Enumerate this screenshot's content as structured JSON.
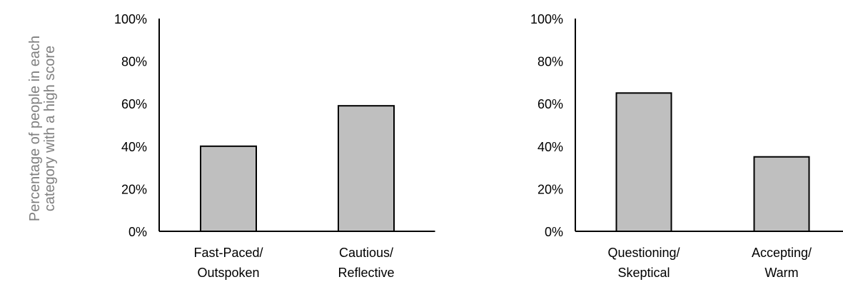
{
  "ylabel": [
    "Percentage of people in each",
    "category with a high score"
  ],
  "colors": {
    "bar_fill": "#bfbfbf",
    "bar_stroke": "#000000",
    "axis": "#000000",
    "ylabel": "#7f7f7f"
  },
  "chart_data": [
    {
      "type": "bar",
      "categories": [
        "Fast-Paced/\nOutspoken",
        "Cautious/\nReflective"
      ],
      "values": [
        40,
        59
      ],
      "ylim": [
        0,
        100
      ],
      "yticks": [
        "0%",
        "20%",
        "40%",
        "60%",
        "80%",
        "100%"
      ],
      "grid": false,
      "title": "",
      "xlabel": ""
    },
    {
      "type": "bar",
      "categories": [
        "Questioning/\nSkeptical",
        "Accepting/\nWarm"
      ],
      "values": [
        65,
        35
      ],
      "ylim": [
        0,
        100
      ],
      "yticks": [
        "0%",
        "20%",
        "40%",
        "60%",
        "80%",
        "100%"
      ],
      "grid": false,
      "title": "",
      "xlabel": ""
    }
  ]
}
